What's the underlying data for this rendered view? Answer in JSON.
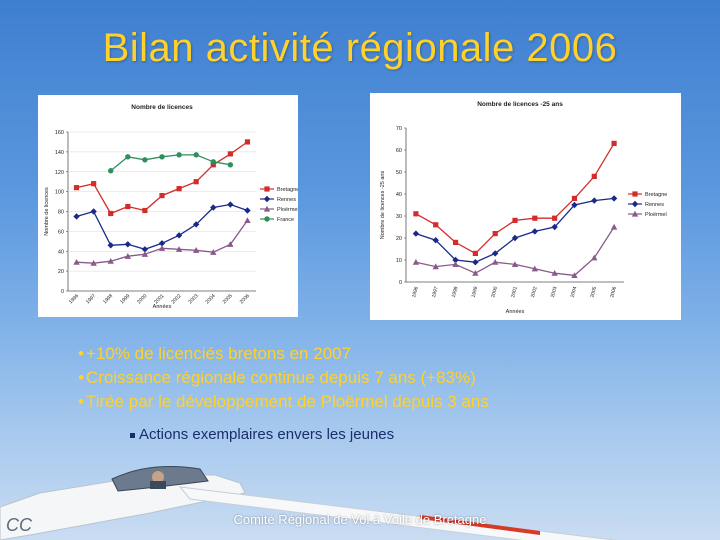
{
  "slide": {
    "title": "Bilan activité régionale 2006",
    "bullets": [
      "+10% de licenciés bretons en 2007",
      "Croissance régionale continue depuis 7 ans (+83%)",
      "Tirée par le développement de Ploërmel depuis 3 ans"
    ],
    "sub_bullet": "Actions exemplaires envers les jeunes",
    "footer": "Comité Régional de Vol à Voile de Bretagne"
  },
  "chart_data": [
    {
      "type": "line",
      "title": "Nombre de licences",
      "xlabel": "Années",
      "ylabel": "Nombre de licences",
      "x": [
        "1996",
        "1997",
        "1998",
        "1999",
        "2000",
        "2001",
        "2002",
        "2003",
        "2004",
        "2005",
        "2006"
      ],
      "ylim": [
        0,
        160
      ],
      "yticks": [
        0,
        20,
        40,
        60,
        80,
        100,
        120,
        140,
        160
      ],
      "legend_position": "right",
      "grid": true,
      "series": [
        {
          "name": "Bretagne",
          "color": "#d42b2b",
          "marker": "square",
          "values": [
            104,
            108,
            78,
            85,
            81,
            96,
            103,
            110,
            127,
            138,
            150
          ]
        },
        {
          "name": "Rennes",
          "color": "#1a2a8a",
          "marker": "diamond",
          "values": [
            75,
            80,
            46,
            47,
            42,
            48,
            56,
            67,
            84,
            87,
            81
          ]
        },
        {
          "name": "Ploërmel",
          "color": "#8a5a8a",
          "marker": "triangle",
          "values": [
            29,
            28,
            30,
            35,
            37,
            43,
            42,
            41,
            39,
            47,
            71
          ]
        },
        {
          "name": "France",
          "color": "#2f8f5a",
          "marker": "circle",
          "values": [
            null,
            null,
            121,
            135,
            132,
            135,
            137,
            137,
            130,
            127,
            null
          ]
        }
      ]
    },
    {
      "type": "line",
      "title": "Nombre de licences -25 ans",
      "xlabel": "Années",
      "ylabel": "Nombre de licences -25 ans",
      "x": [
        "1996",
        "1997",
        "1998",
        "1999",
        "2000",
        "2001",
        "2002",
        "2003",
        "2004",
        "2005",
        "2006"
      ],
      "ylim": [
        0,
        70
      ],
      "yticks": [
        0,
        10,
        20,
        30,
        40,
        50,
        60,
        70
      ],
      "legend_position": "right",
      "grid": false,
      "series": [
        {
          "name": "Bretagne",
          "color": "#d42b2b",
          "marker": "square",
          "values": [
            31,
            26,
            18,
            13,
            22,
            28,
            29,
            29,
            38,
            48,
            63
          ]
        },
        {
          "name": "Rennes",
          "color": "#1a2a8a",
          "marker": "diamond",
          "values": [
            22,
            19,
            10,
            9,
            13,
            20,
            23,
            25,
            35,
            37,
            38
          ]
        },
        {
          "name": "Ploërmel",
          "color": "#8a5a8a",
          "marker": "triangle",
          "values": [
            9,
            7,
            8,
            4,
            9,
            8,
            6,
            4,
            3,
            11,
            25
          ]
        }
      ]
    }
  ]
}
